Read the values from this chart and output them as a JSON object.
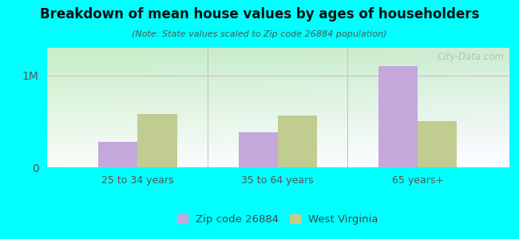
{
  "title": "Breakdown of mean house values by ages of householders",
  "subtitle": "(Note: State values scaled to Zip code 26884 population)",
  "categories": [
    "25 to 34 years",
    "35 to 64 years",
    "65 years+"
  ],
  "zip_values": [
    280000,
    380000,
    1100000
  ],
  "state_values": [
    580000,
    560000,
    500000
  ],
  "zip_color": "#c4a8dc",
  "state_color": "#c0cc90",
  "background_color": "#00ffff",
  "plot_bg_tl": "#c8e8c8",
  "plot_bg_tr": "#e8f4e8",
  "plot_bg_bl": "#e0f0f8",
  "plot_bg_br": "#f8ffff",
  "ytick_labels": [
    "0",
    "1M"
  ],
  "ytick_values": [
    0,
    1000000
  ],
  "ylim": [
    0,
    1300000
  ],
  "bar_width": 0.28,
  "legend_zip": "Zip code 26884",
  "legend_state": "West Virginia",
  "watermark": "City-Data.com"
}
